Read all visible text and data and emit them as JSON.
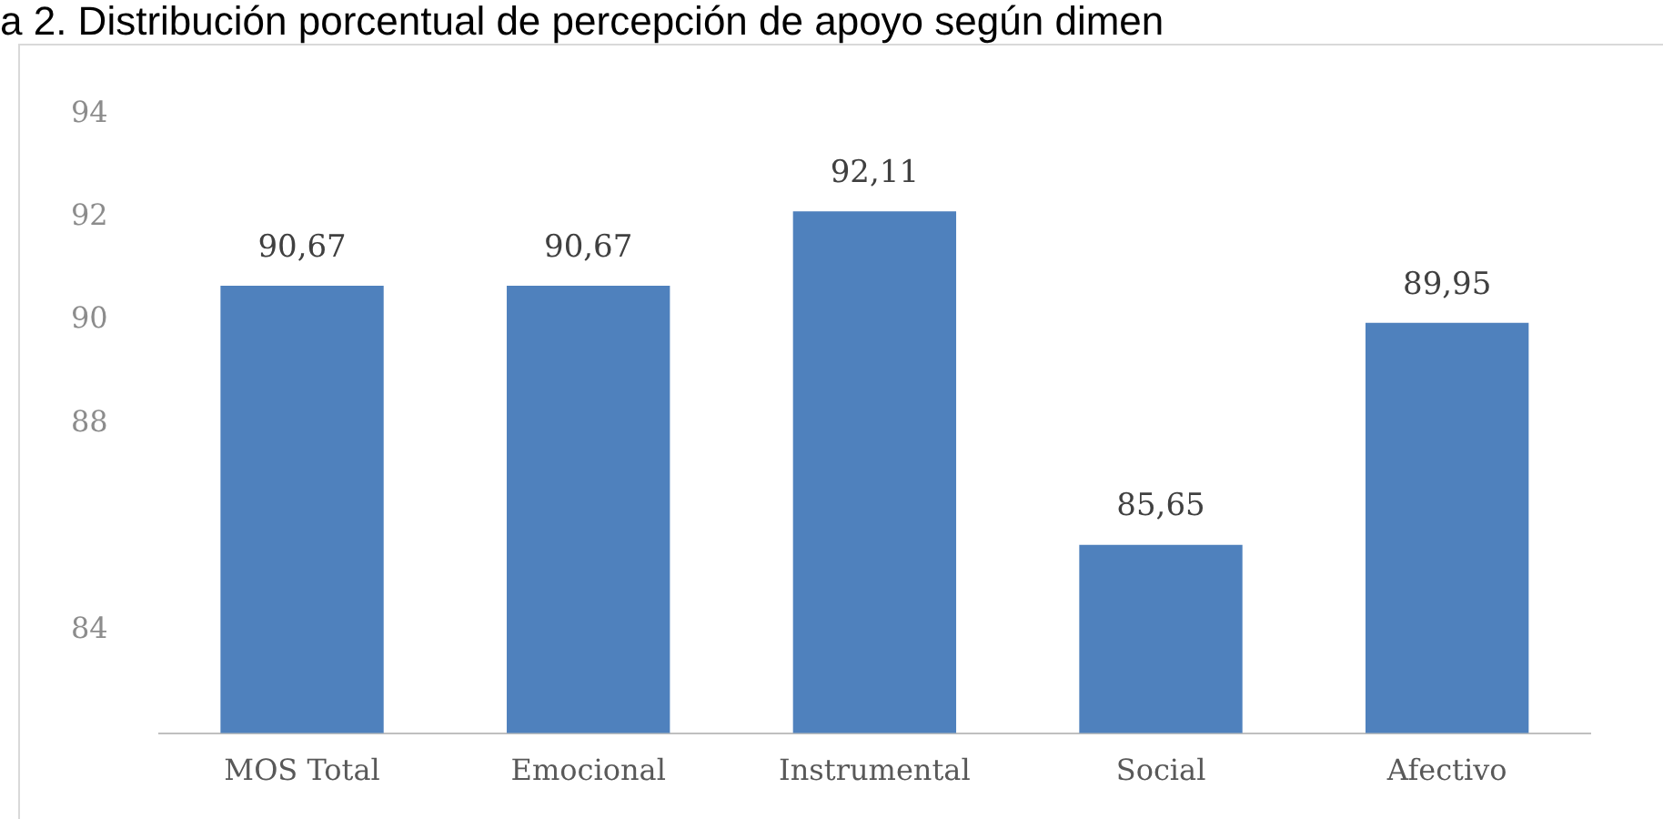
{
  "chart_data": {
    "type": "bar",
    "title": "a 2. Distribución porcentual de percepción de apoyo según dimen",
    "categories": [
      "MOS Total",
      "Emocional",
      "Instrumental",
      "Social",
      "Afectivo"
    ],
    "values": [
      90.67,
      90.67,
      92.11,
      85.65,
      89.95
    ],
    "color": "#4f81bd",
    "value_labels": [
      "90,67",
      "90,67",
      "92,11",
      "85,65",
      "89,95"
    ],
    "ylim": [
      82,
      94
    ],
    "yticks": [
      94,
      92,
      90,
      88,
      84
    ],
    "grid": false,
    "legend": false
  }
}
